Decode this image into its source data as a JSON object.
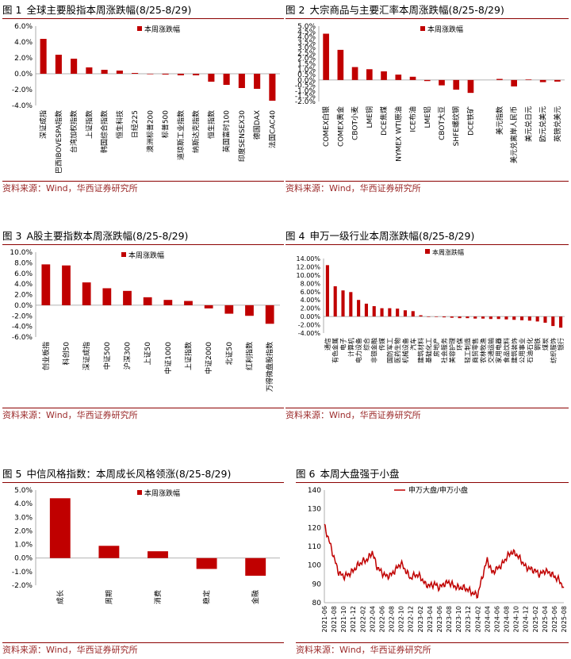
{
  "source_label": "资料来源：Wind，华西证券研究所",
  "colors": {
    "bar": "#c00000",
    "title_rule": "#8b0000",
    "axis": "#999999"
  },
  "chart_data": [
    {
      "id": "c1",
      "fig": "图 1",
      "title": "全球主要股指本周涨跌幅(8/25-8/29)",
      "type": "bar",
      "legend": "本周涨跌幅",
      "ylim": [
        -4.0,
        6.0
      ],
      "ystep": 2.0,
      "ydec": 1,
      "pct": true,
      "categories": [
        "深证成指",
        "巴西IBOVESPA指数",
        "台湾加权指数",
        "上证指数",
        "韩国综合指数",
        "恒生科技",
        "日经225",
        "澳洲标普200",
        "标普500",
        "道琼斯工业指数",
        "纳斯达克指数",
        "恒生指数",
        "英国富时100",
        "印度SENSEX30",
        "德国DAX",
        "法国CAC40"
      ],
      "values": [
        4.4,
        2.4,
        1.9,
        0.8,
        0.5,
        0.4,
        0.1,
        -0.05,
        -0.1,
        -0.2,
        -0.2,
        -1.0,
        -1.4,
        -1.8,
        -1.9,
        -3.4
      ]
    },
    {
      "id": "c2",
      "fig": "图 2",
      "title": "大宗商品与主要汇率本周涨跌幅(8/25-8/29)",
      "type": "bar",
      "legend": "本周涨跌幅",
      "ylim": [
        -2.0,
        5.0
      ],
      "ystep": 0.5,
      "ydec": 1,
      "pct": true,
      "categories": [
        "COMEX白银",
        "COMEX黄金",
        "CBOT小麦",
        "LME铜",
        "DCE焦煤",
        "NYMEX WTI原油",
        "ICE布油",
        "LME铝",
        "CBOT大豆",
        "SHFE螺纹钢",
        "DCE铁矿",
        "",
        "美元指数",
        "美元兑离岸人民币",
        "美元兑日元",
        "欧元兑美元",
        "英镑兑美元"
      ],
      "values": [
        4.3,
        2.8,
        1.2,
        1.0,
        0.8,
        0.5,
        0.3,
        -0.1,
        -0.5,
        -0.9,
        -1.2,
        0,
        0.1,
        -0.6,
        0.05,
        -0.2,
        -0.15
      ]
    },
    {
      "id": "c3",
      "fig": "图 3",
      "title": "A股主要指数本周涨跌幅(8/25-8/29)",
      "type": "bar",
      "legend": "本周涨跌幅",
      "ylim": [
        -6.0,
        10.0
      ],
      "ystep": 2.0,
      "ydec": 1,
      "pct": true,
      "categories": [
        "创业板指",
        "科创50",
        "深证成指",
        "中证500",
        "沪深300",
        "上证50",
        "中证1000",
        "上证指数",
        "中证2000",
        "北证50",
        "红利指数",
        "万得微盘股指数"
      ],
      "values": [
        7.7,
        7.5,
        4.3,
        3.2,
        2.7,
        1.5,
        1.0,
        0.8,
        -0.6,
        -1.6,
        -2.0,
        -3.5
      ]
    },
    {
      "id": "c4",
      "fig": "图 4",
      "title": "申万一级行业本周涨跌幅(8/25-8/29)",
      "type": "bar",
      "legend": "本周涨跌幅",
      "ylim": [
        -4.0,
        14.0
      ],
      "ystep": 2.0,
      "ydec": 2,
      "pct": true,
      "categories": [
        "通信",
        "有色金属",
        "电子",
        "计算机",
        "电力设备",
        "综合",
        "非银金融",
        "传媒",
        "国防军工",
        "医药生物",
        "机械设备",
        "汽车",
        "建筑材料",
        "基础化工",
        "房地产",
        "社会服务",
        "美容护理",
        "环保",
        "轻工制造",
        "商贸零售",
        "农林牧渔",
        "交通运输",
        "家用电器",
        "食品饮料",
        "建筑装饰",
        "公用事业",
        "石油石化",
        "钢铁",
        "煤炭",
        "纺织服饰",
        "银行"
      ],
      "values": [
        12.4,
        7.3,
        6.3,
        5.9,
        4.0,
        3.1,
        2.5,
        2.0,
        2.0,
        1.9,
        1.5,
        1.3,
        0.3,
        0.0,
        -0.1,
        -0.2,
        -0.3,
        -0.4,
        -0.4,
        -0.5,
        -0.5,
        -0.6,
        -0.6,
        -0.7,
        -0.8,
        -0.9,
        -1.0,
        -1.2,
        -1.5,
        -2.3,
        -2.7
      ]
    },
    {
      "id": "c5",
      "fig": "图 5",
      "title": "中信风格指数：本周成长风格领涨(8/25-8/29)",
      "type": "bar",
      "legend": "本周涨跌幅",
      "ylim": [
        -2.0,
        5.0
      ],
      "ystep": 1.0,
      "ydec": 1,
      "pct": true,
      "categories": [
        "成长",
        "周期",
        "消费",
        "稳定",
        "金融"
      ],
      "values": [
        4.4,
        0.9,
        0.5,
        -0.8,
        -1.3
      ]
    },
    {
      "id": "c6",
      "fig": "图 6",
      "title": "本周大盘强于小盘",
      "type": "line",
      "legend": "申万大盘/申万小盘",
      "ylim": [
        80,
        140
      ],
      "ystep": 10,
      "ydec": 0,
      "pct": false,
      "x_ticks": [
        "2021-06",
        "2021-08",
        "2021-10",
        "2021-12",
        "2022-02",
        "2022-04",
        "2022-06",
        "2022-08",
        "2022-10",
        "2022-12",
        "2023-02",
        "2023-04",
        "2023-06",
        "2023-08",
        "2023-10",
        "2023-12",
        "2024-02",
        "2024-04",
        "2024-06",
        "2024-08",
        "2024-10",
        "2024-12",
        "2025-02",
        "2025-04",
        "2025-06",
        "2025-08"
      ],
      "x": [
        "2021-06",
        "2021-07",
        "2021-08",
        "2021-09",
        "2021-10",
        "2021-11",
        "2021-12",
        "2022-01",
        "2022-02",
        "2022-03",
        "2022-04",
        "2022-05",
        "2022-06",
        "2022-07",
        "2022-08",
        "2022-09",
        "2022-10",
        "2022-11",
        "2022-12",
        "2023-01",
        "2023-02",
        "2023-03",
        "2023-04",
        "2023-05",
        "2023-06",
        "2023-07",
        "2023-08",
        "2023-09",
        "2023-10",
        "2023-11",
        "2023-12",
        "2024-01",
        "2024-02",
        "2024-03",
        "2024-04",
        "2024-05",
        "2024-06",
        "2024-07",
        "2024-08",
        "2024-09",
        "2024-10",
        "2024-11",
        "2024-12",
        "2025-01",
        "2025-02",
        "2025-03",
        "2025-04",
        "2025-05",
        "2025-06",
        "2025-07",
        "2025-08"
      ],
      "values": [
        121,
        113,
        104,
        96,
        94,
        95,
        97,
        100,
        102,
        103,
        107,
        99,
        96,
        94,
        95,
        98,
        101,
        97,
        93,
        95,
        94,
        90,
        89,
        90,
        88,
        90,
        91,
        89,
        88,
        88,
        87,
        85,
        84,
        94,
        103,
        96,
        98,
        100,
        104,
        107,
        106,
        103,
        99,
        98,
        97,
        95,
        97,
        96,
        94,
        92,
        88
      ]
    }
  ]
}
